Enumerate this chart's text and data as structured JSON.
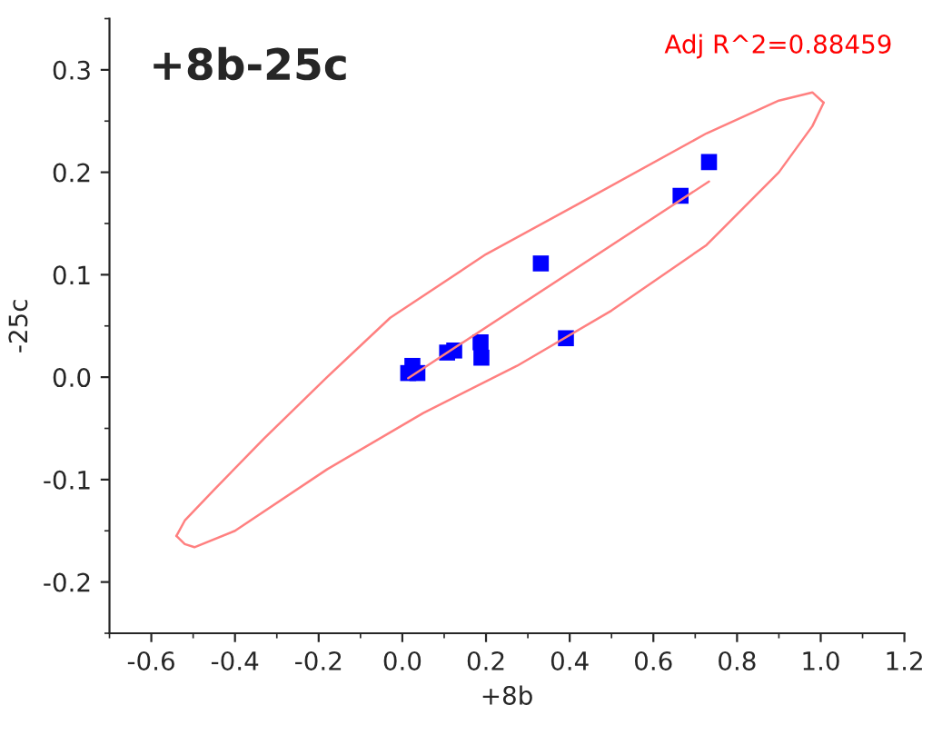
{
  "chart_data": {
    "type": "scatter",
    "xlabel": "+8b",
    "ylabel": "-25c",
    "annotations": [
      "+8b-25c",
      "Adj R^2=0.88459"
    ],
    "xlim": [
      -0.7,
      1.2
    ],
    "ylim": [
      -0.25,
      0.35
    ],
    "xticks": [
      {
        "value": -0.6,
        "label": "-0.6"
      },
      {
        "value": -0.4,
        "label": "-0.4"
      },
      {
        "value": -0.2,
        "label": "-0.2"
      },
      {
        "value": 0,
        "label": "0.0"
      },
      {
        "value": 0.2,
        "label": "0.2"
      },
      {
        "value": 0.4,
        "label": "0.4"
      },
      {
        "value": 0.6,
        "label": "0.6"
      },
      {
        "value": 0.8,
        "label": "0.8"
      },
      {
        "value": 1.0,
        "label": "1.0"
      },
      {
        "value": 1.2,
        "label": "1.2"
      }
    ],
    "yticks": [
      {
        "value": -0.2,
        "label": "-0.2"
      },
      {
        "value": -0.1,
        "label": "-0.1"
      },
      {
        "value": 0,
        "label": "0.0"
      },
      {
        "value": 0.1,
        "label": "0.1"
      },
      {
        "value": 0.2,
        "label": "0.2"
      },
      {
        "value": 0.3,
        "label": "0.3"
      }
    ],
    "grid": false,
    "legend": false,
    "series": [
      {
        "color": "#0000ff",
        "marker": "square",
        "x": [
          0.733,
          0.665,
          0.331,
          0.391,
          0.187,
          0.189,
          0.124,
          0.107,
          0.024,
          0.014,
          0.036
        ],
        "values": [
          0.21,
          0.177,
          0.111,
          0.038,
          0.034,
          0.019,
          0.026,
          0.024,
          0.011,
          0.004,
          0.004
        ]
      },
      {
        "type": "line",
        "color": "#ff8080",
        "marker": "none",
        "x": [
          0.014,
          0.733
        ],
        "values": [
          -0.001,
          0.191
        ]
      },
      {
        "type": "line",
        "color": "#ff8080",
        "marker": "none",
        "x": [
          -0.54,
          -0.52,
          -0.45,
          -0.331,
          -0.18,
          -0.029,
          0.2,
          0.425,
          0.727,
          0.9,
          0.98,
          1.007
        ],
        "values": [
          -0.155,
          -0.14,
          -0.11,
          -0.06,
          0.0,
          0.058,
          0.12,
          0.17,
          0.238,
          0.27,
          0.278,
          0.268
        ]
      },
      {
        "type": "line",
        "color": "#ff8080",
        "marker": "none",
        "x": [
          -0.54,
          -0.52,
          -0.497,
          -0.4,
          -0.18,
          0.05,
          0.274,
          0.5,
          0.727,
          0.9,
          0.98,
          1.007
        ],
        "values": [
          -0.155,
          -0.163,
          -0.166,
          -0.15,
          -0.09,
          -0.035,
          0.011,
          0.065,
          0.129,
          0.2,
          0.245,
          0.268
        ]
      }
    ]
  }
}
